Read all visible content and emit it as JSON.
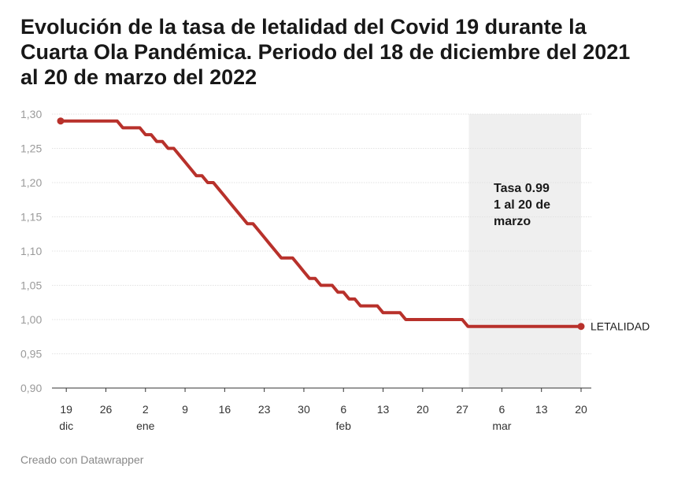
{
  "title": "Evolución de la tasa de letalidad del Covid 19 durante la Cuarta Ola Pandémica. Periodo del 18 de diciembre del 2021 al 20 de marzo del 2022",
  "footer": "Creado con Datawrapper",
  "colors": {
    "line": "#b8312b",
    "shade": "#efefef",
    "grid": "#e2e2e2",
    "axis": "#333333",
    "ytick": "#9a9a9a"
  },
  "chart_data": {
    "type": "line",
    "title": "Evolución de la tasa de letalidad del Covid 19 durante la Cuarta Ola Pandémica. Periodo del 18 de diciembre del 2021 al 20 de marzo del 2022",
    "xlabel": "",
    "ylabel": "",
    "x_range": [
      "2021-12-18",
      "2022-03-20"
    ],
    "ylim": [
      0.9,
      1.3
    ],
    "y_ticks": [
      "1,30",
      "1,25",
      "1,20",
      "1,15",
      "1,10",
      "1,05",
      "1,00",
      "0,95",
      "0,90"
    ],
    "x_ticks": [
      {
        "date": "2021-12-19",
        "day": "19",
        "month": "dic"
      },
      {
        "date": "2021-12-26",
        "day": "26",
        "month": ""
      },
      {
        "date": "2022-01-02",
        "day": "2",
        "month": "ene"
      },
      {
        "date": "2022-01-09",
        "day": "9",
        "month": ""
      },
      {
        "date": "2022-01-16",
        "day": "16",
        "month": ""
      },
      {
        "date": "2022-01-23",
        "day": "23",
        "month": ""
      },
      {
        "date": "2022-01-30",
        "day": "30",
        "month": ""
      },
      {
        "date": "2022-02-06",
        "day": "6",
        "month": "feb"
      },
      {
        "date": "2022-02-13",
        "day": "13",
        "month": ""
      },
      {
        "date": "2022-02-20",
        "day": "20",
        "month": ""
      },
      {
        "date": "2022-02-27",
        "day": "27",
        "month": ""
      },
      {
        "date": "2022-03-06",
        "day": "6",
        "month": "mar"
      },
      {
        "date": "2022-03-13",
        "day": "13",
        "month": ""
      },
      {
        "date": "2022-03-20",
        "day": "20",
        "month": ""
      }
    ],
    "grid": true,
    "series": [
      {
        "name": "LETALIDAD",
        "x": [
          "2021-12-18",
          "2021-12-24",
          "2021-12-28",
          "2021-12-29",
          "2021-12-30",
          "2021-12-31",
          "2022-01-01",
          "2022-01-02",
          "2022-01-03",
          "2022-01-04",
          "2022-01-05",
          "2022-01-06",
          "2022-01-07",
          "2022-01-08",
          "2022-01-09",
          "2022-01-10",
          "2022-01-11",
          "2022-01-12",
          "2022-01-13",
          "2022-01-14",
          "2022-01-15",
          "2022-01-16",
          "2022-01-17",
          "2022-01-18",
          "2022-01-19",
          "2022-01-20",
          "2022-01-21",
          "2022-01-22",
          "2022-01-23",
          "2022-01-24",
          "2022-01-25",
          "2022-01-26",
          "2022-01-27",
          "2022-01-28",
          "2022-01-29",
          "2022-01-30",
          "2022-01-31",
          "2022-02-01",
          "2022-02-02",
          "2022-02-03",
          "2022-02-04",
          "2022-02-05",
          "2022-02-06",
          "2022-02-07",
          "2022-02-08",
          "2022-02-09",
          "2022-02-10",
          "2022-02-11",
          "2022-02-12",
          "2022-02-13",
          "2022-02-14",
          "2022-02-15",
          "2022-02-16",
          "2022-02-17",
          "2022-02-18",
          "2022-02-19",
          "2022-02-20",
          "2022-02-21",
          "2022-02-22",
          "2022-02-26",
          "2022-02-27",
          "2022-02-28",
          "2022-03-01",
          "2022-03-20"
        ],
        "values": [
          1.29,
          1.29,
          1.29,
          1.28,
          1.28,
          1.28,
          1.28,
          1.27,
          1.27,
          1.26,
          1.26,
          1.25,
          1.25,
          1.24,
          1.23,
          1.22,
          1.21,
          1.21,
          1.2,
          1.2,
          1.19,
          1.18,
          1.17,
          1.16,
          1.15,
          1.14,
          1.14,
          1.13,
          1.12,
          1.11,
          1.1,
          1.09,
          1.09,
          1.09,
          1.08,
          1.07,
          1.06,
          1.06,
          1.05,
          1.05,
          1.05,
          1.04,
          1.04,
          1.03,
          1.03,
          1.02,
          1.02,
          1.02,
          1.02,
          1.01,
          1.01,
          1.01,
          1.01,
          1.0,
          1.0,
          1.0,
          1.0,
          1.0,
          1.0,
          1.0,
          1.0,
          0.99,
          0.99,
          0.99
        ]
      }
    ],
    "shaded_region": {
      "start": "2022-03-01",
      "end": "2022-03-20"
    },
    "annotation": {
      "lines": [
        "Tasa 0.99",
        "1 al 20 de",
        "marzo"
      ]
    },
    "series_label": "LETALIDAD"
  }
}
